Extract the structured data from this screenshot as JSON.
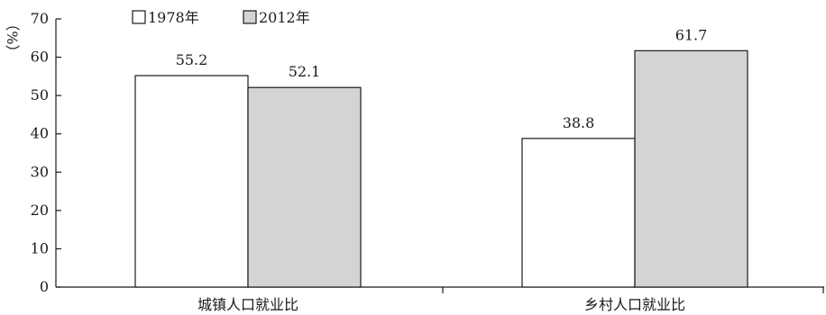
{
  "chart_data": {
    "type": "bar",
    "categories": [
      "城镇人口就业比",
      "乡村人口就业比"
    ],
    "series": [
      {
        "name": "1978年",
        "values": [
          55.2,
          38.8
        ],
        "color": "#ffffff"
      },
      {
        "name": "2012年",
        "values": [
          52.1,
          61.7
        ],
        "color": "#d4d4d4"
      }
    ],
    "ylabel": "（%）",
    "ylim": [
      0,
      70
    ],
    "yticks": [
      0,
      10,
      20,
      30,
      40,
      50,
      60,
      70
    ],
    "legend_position": "top-left",
    "grid": false
  }
}
